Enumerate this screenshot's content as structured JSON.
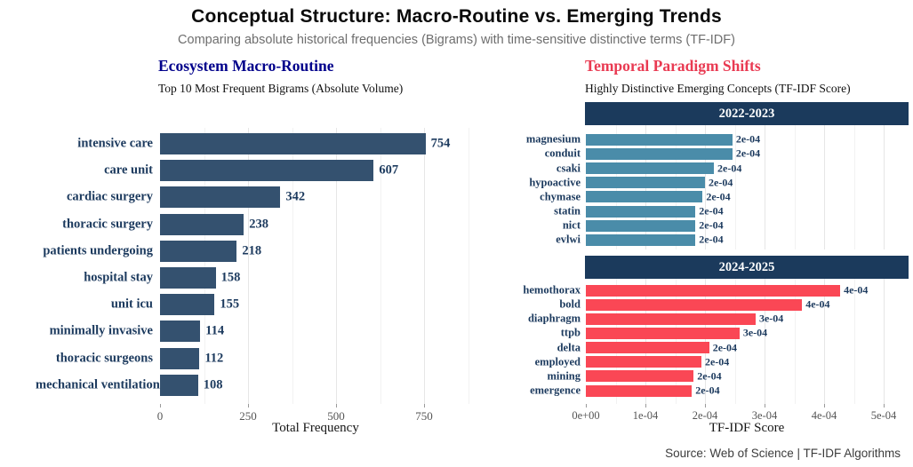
{
  "header": {
    "title": "Conceptual Structure: Macro-Routine vs. Emerging Trends",
    "subtitle": "Comparing absolute historical frequencies (Bigrams) with time-sensitive distinctive terms (TF-IDF)"
  },
  "left_panel": {
    "title": "Ecosystem Macro-Routine",
    "subtitle": "Top 10 Most Frequent Bigrams (Absolute Volume)",
    "xlabel": "Total Frequency"
  },
  "right_panel": {
    "title": "Temporal Paradigm Shifts",
    "subtitle": "Highly Distinctive Emerging Concepts (TF-IDF Score)",
    "xlabel": "TF-IDF Score"
  },
  "footer": {
    "source": "Source: Web of Science | TF-IDF Algorithms"
  },
  "colors": {
    "navy_strip": "#1b3a5c",
    "left_bar": "#34516f",
    "blue_bar": "#4a8ca9",
    "red_bar": "#fa4755",
    "label_text": "#1c3a5e",
    "left_title": "#00008b",
    "right_title": "#e93a52",
    "tick_text": "#555555",
    "subtitle_gray": "#6e6e6e"
  },
  "chart_data": [
    {
      "id": "bigram-frequency",
      "type": "bar",
      "orientation": "horizontal",
      "title": "Ecosystem Macro-Routine",
      "subtitle": "Top 10 Most Frequent Bigrams (Absolute Volume)",
      "xlabel": "Total Frequency",
      "categories": [
        "intensive care",
        "care unit",
        "cardiac surgery",
        "thoracic surgery",
        "patients undergoing",
        "hospital stay",
        "unit icu",
        "minimally invasive",
        "thoracic surgeons",
        "mechanical ventilation"
      ],
      "values": [
        754,
        607,
        342,
        238,
        218,
        158,
        155,
        114,
        112,
        108
      ],
      "value_labels": [
        "754",
        "607",
        "342",
        "238",
        "218",
        "158",
        "155",
        "114",
        "112",
        "108"
      ],
      "xlim": [
        0,
        884
      ],
      "xticks": [
        0,
        250,
        500,
        750
      ],
      "xtick_labels": [
        "0",
        "250",
        "500",
        "750"
      ],
      "grid": true,
      "legend": "none"
    },
    {
      "id": "tfidf-2022-2023",
      "type": "bar",
      "orientation": "horizontal",
      "facet_label": "2022-2023",
      "categories": [
        "magnesium",
        "conduit",
        "csaki",
        "hypoactive",
        "chymase",
        "statin",
        "nict",
        "evlwi"
      ],
      "values": [
        0.000246,
        0.000246,
        0.000215,
        0.0002,
        0.000196,
        0.000184,
        0.000184,
        0.000184
      ],
      "value_labels": [
        "2e-04",
        "2e-04",
        "2e-04",
        "2e-04",
        "2e-04",
        "2e-04",
        "2e-04",
        "2e-04"
      ],
      "xlim": [
        0,
        0.000542
      ],
      "xticks": [
        0,
        0.0001,
        0.0002,
        0.0003,
        0.0004,
        0.0005
      ],
      "xtick_labels": [
        "0e+00",
        "1e-04",
        "2e-04",
        "3e-04",
        "4e-04",
        "5e-04"
      ],
      "grid": true,
      "legend": "none"
    },
    {
      "id": "tfidf-2024-2025",
      "type": "bar",
      "orientation": "horizontal",
      "facet_label": "2024-2025",
      "categories": [
        "hemothorax",
        "bold",
        "diaphragm",
        "ttpb",
        "delta",
        "employed",
        "mining",
        "emergence"
      ],
      "values": [
        0.000427,
        0.000363,
        0.000285,
        0.000258,
        0.000207,
        0.000194,
        0.000181,
        0.000178
      ],
      "value_labels": [
        "4e-04",
        "4e-04",
        "3e-04",
        "3e-04",
        "2e-04",
        "2e-04",
        "2e-04",
        "2e-04"
      ],
      "xlim": [
        0,
        0.000542
      ],
      "xticks": [
        0,
        0.0001,
        0.0002,
        0.0003,
        0.0004,
        0.0005
      ],
      "xtick_labels": [
        "0e+00",
        "1e-04",
        "2e-04",
        "3e-04",
        "4e-04",
        "5e-04"
      ],
      "grid": true,
      "legend": "none"
    }
  ]
}
